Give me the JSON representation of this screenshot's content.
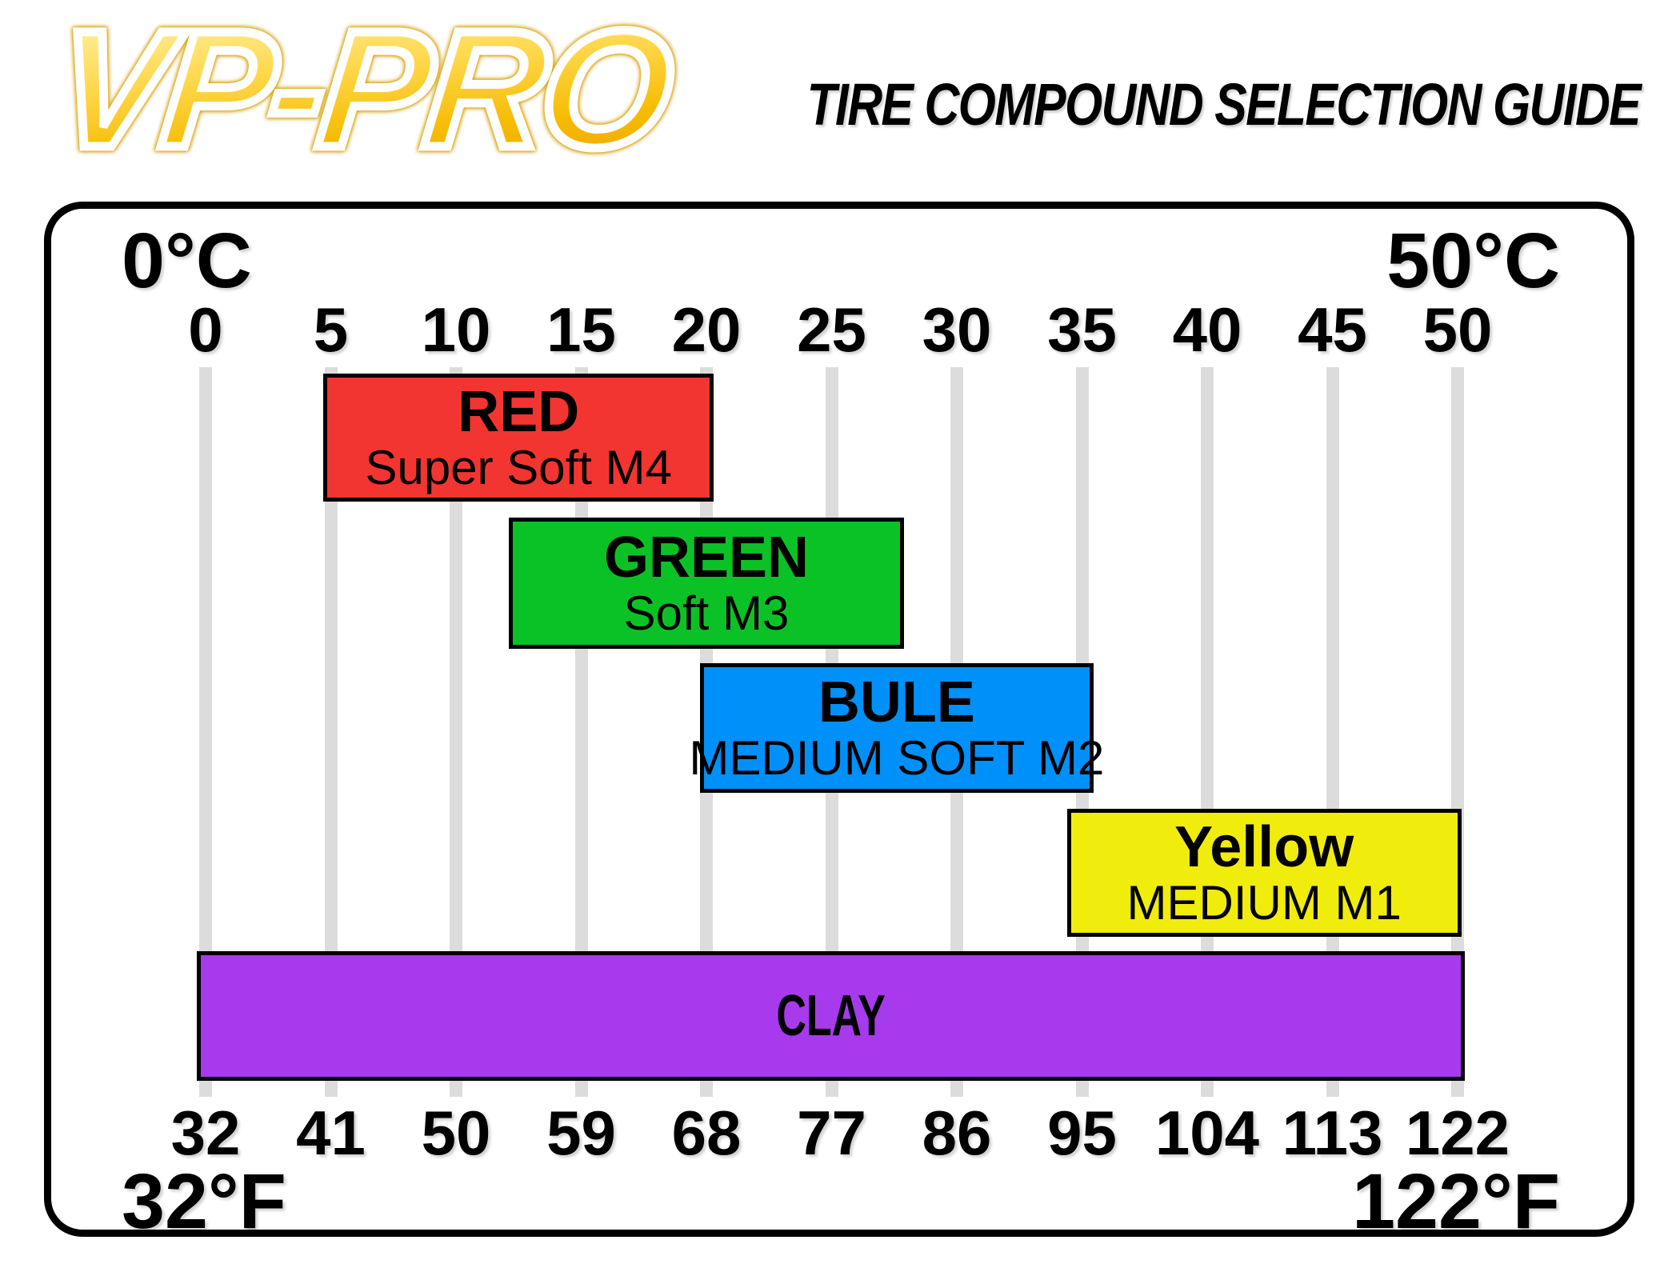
{
  "header": {
    "logo_text": "VP-PRO",
    "title": "TIRE COMPOUND SELECTION GUIDE"
  },
  "chart_data": {
    "type": "bar",
    "orientation": "horizontal-range",
    "title": "TIRE COMPOUND SELECTION GUIDE",
    "axis_top": {
      "unit": "C",
      "corner_label_left": "0°C",
      "corner_label_right": "50°C",
      "ticks": [
        "0",
        "5",
        "10",
        "15",
        "20",
        "25",
        "30",
        "35",
        "40",
        "45",
        "50"
      ]
    },
    "axis_bottom": {
      "unit": "F",
      "corner_label_left": "32°F",
      "corner_label_right": "122°F",
      "ticks": [
        "32",
        "41",
        "50",
        "59",
        "68",
        "77",
        "86",
        "95",
        "104",
        "113",
        "122"
      ]
    },
    "xlim_c": [
      0,
      50
    ],
    "grid": true,
    "gridline_color": "#dcdcdc",
    "bar_border_color": "#000000",
    "bars": [
      {
        "label": "RED",
        "sublabel": "Super Soft M4",
        "color": "#f23530",
        "range_c": [
          4.7,
          20.3
        ]
      },
      {
        "label": "GREEN",
        "sublabel": "Soft M3",
        "color": "#0bc226",
        "range_c": [
          12.1,
          27.9
        ]
      },
      {
        "label": "BULE",
        "sublabel": "MEDIUM SOFT M2",
        "color": "#0090fa",
        "range_c": [
          19.75,
          35.45
        ]
      },
      {
        "label": "Yellow",
        "sublabel": "MEDIUM M1",
        "color": "#f0ec0c",
        "range_c": [
          34.4,
          50.15
        ]
      },
      {
        "label": "CLAY",
        "sublabel": "",
        "color": "#a63aec",
        "range_c": [
          -0.35,
          50.3
        ]
      }
    ]
  }
}
